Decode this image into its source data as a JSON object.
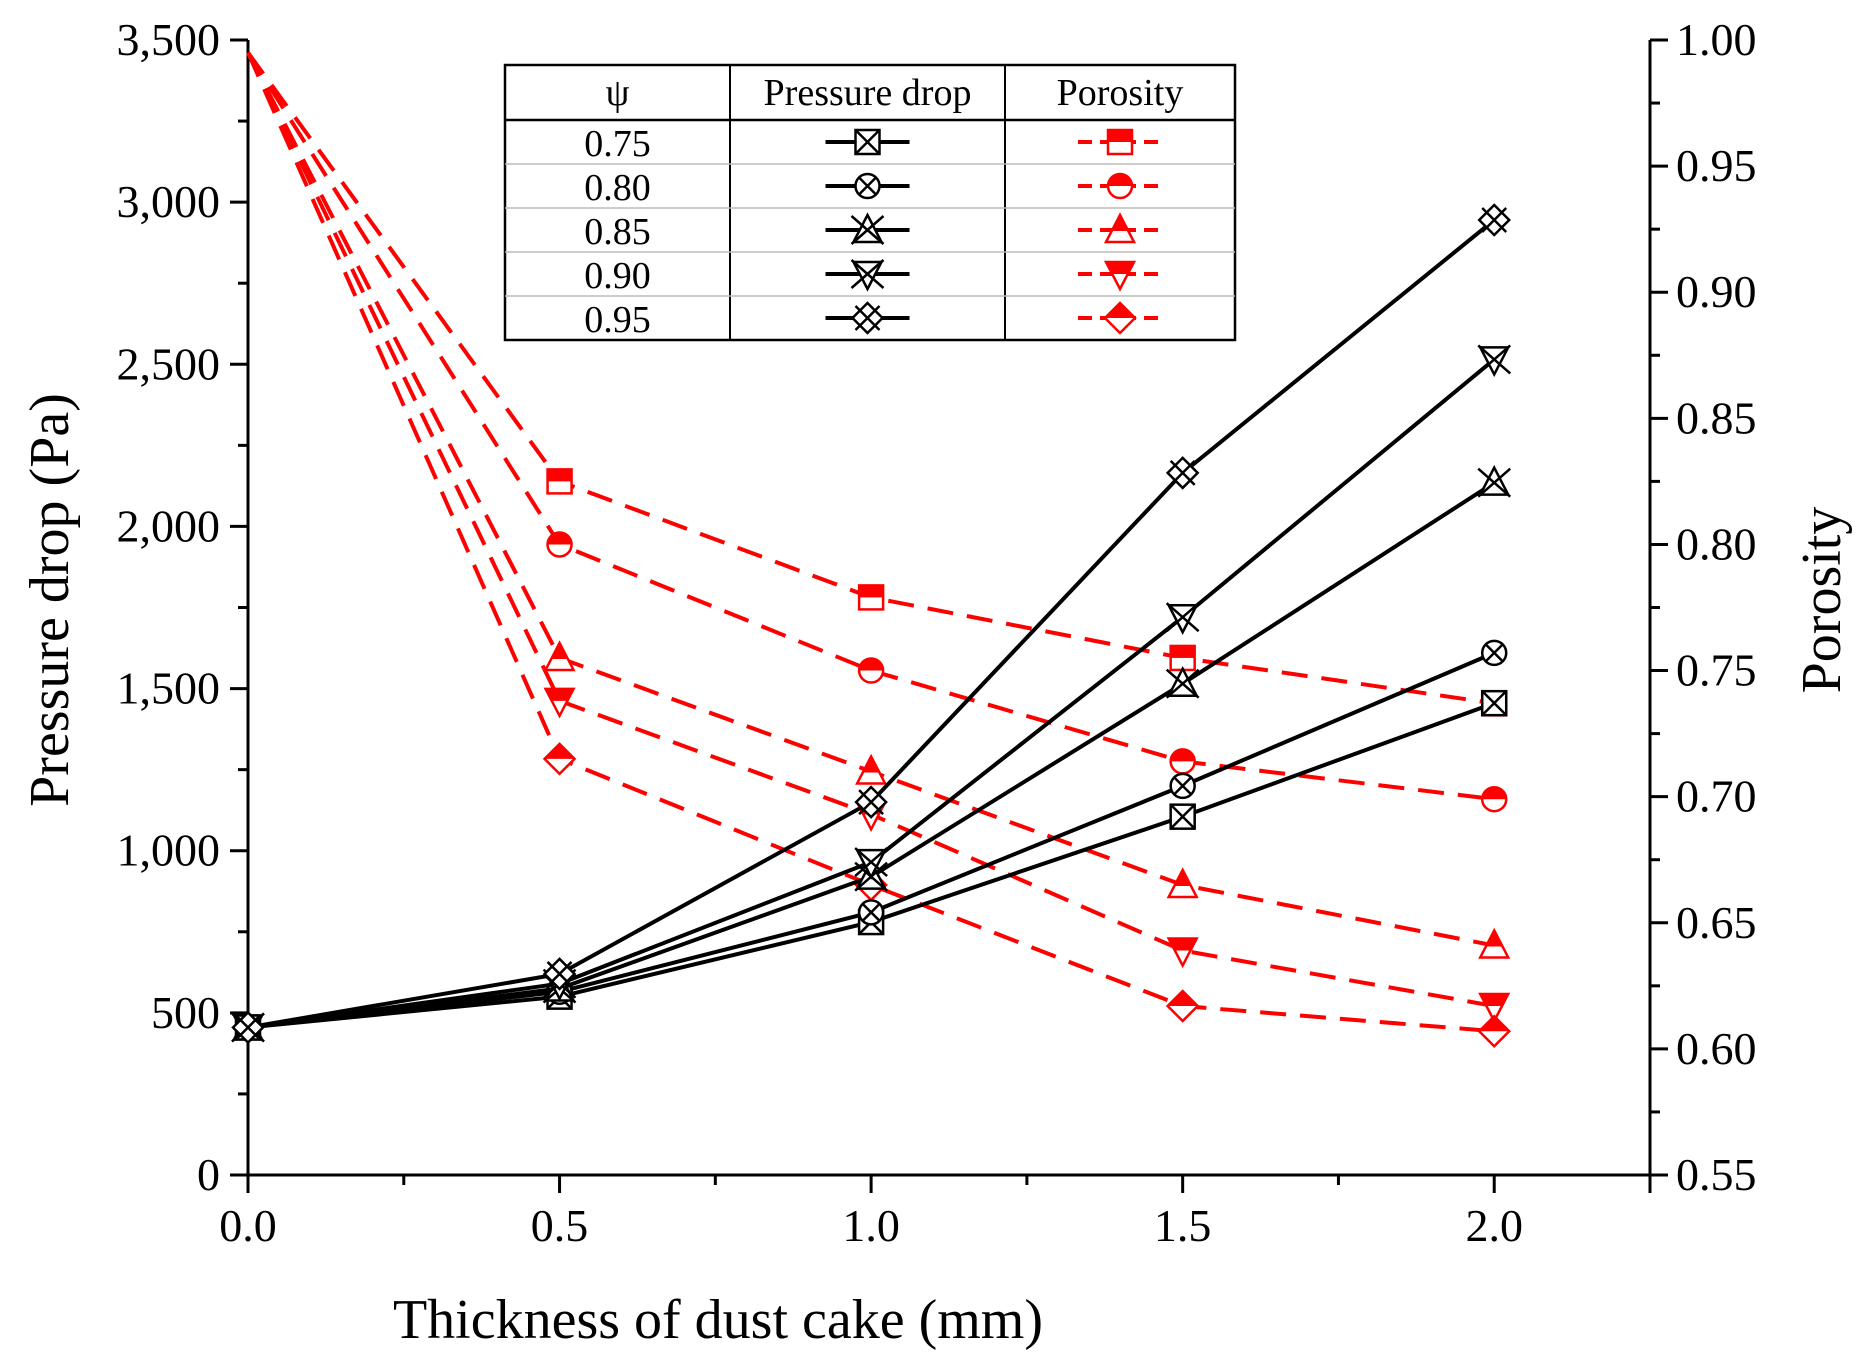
{
  "chart_data": {
    "type": "line",
    "title": "",
    "xlabel": "Thickness of dust cake (mm)",
    "ylabel_left": "Pressure drop (Pa)",
    "ylabel_right": "Porosity",
    "x": [
      0,
      0.5,
      1.0,
      1.5,
      2.0
    ],
    "x_ticks": [
      "0.0",
      "0.5",
      "1.0",
      "1.5",
      "2.0"
    ],
    "xlim": [
      0,
      2.25
    ],
    "ylim_left": [
      0,
      3500
    ],
    "y_left_ticks": [
      "0",
      "500",
      "1,000",
      "1,500",
      "2,000",
      "2,500",
      "3,000",
      "3,500"
    ],
    "ylim_right": [
      0.55,
      1.0
    ],
    "y_right_ticks": [
      "0.55",
      "0.60",
      "0.65",
      "0.70",
      "0.75",
      "0.80",
      "0.85",
      "0.90",
      "0.95",
      "1.00"
    ],
    "legend": {
      "placement": "top-center",
      "headers": [
        "ψ",
        "Pressure drop",
        "Porosity"
      ],
      "rows": [
        "0.75",
        "0.80",
        "0.85",
        "0.90",
        "0.95"
      ]
    },
    "series": [
      {
        "name": "0.75",
        "marker": "square",
        "pressure_drop": [
          455,
          550,
          780,
          1105,
          1455
        ],
        "porosity": [
          0.995,
          0.825,
          0.779,
          0.755,
          0.737
        ]
      },
      {
        "name": "0.80",
        "marker": "circle",
        "pressure_drop": [
          455,
          565,
          810,
          1200,
          1610
        ],
        "porosity": [
          0.995,
          0.8,
          0.75,
          0.714,
          0.699
        ]
      },
      {
        "name": "0.85",
        "marker": "triangle-up",
        "pressure_drop": [
          455,
          575,
          920,
          1515,
          2135
        ],
        "porosity": [
          0.995,
          0.755,
          0.71,
          0.665,
          0.641
        ]
      },
      {
        "name": "0.90",
        "marker": "triangle-down",
        "pressure_drop": [
          455,
          590,
          965,
          1720,
          2515
        ],
        "porosity": [
          0.995,
          0.738,
          0.693,
          0.639,
          0.617
        ]
      },
      {
        "name": "0.95",
        "marker": "diamond",
        "pressure_drop": [
          455,
          620,
          1150,
          2165,
          2945
        ],
        "porosity": [
          0.995,
          0.715,
          0.665,
          0.617,
          0.607
        ]
      }
    ],
    "colors": {
      "pressure_drop": "#000000",
      "porosity": "#ff0000"
    }
  }
}
